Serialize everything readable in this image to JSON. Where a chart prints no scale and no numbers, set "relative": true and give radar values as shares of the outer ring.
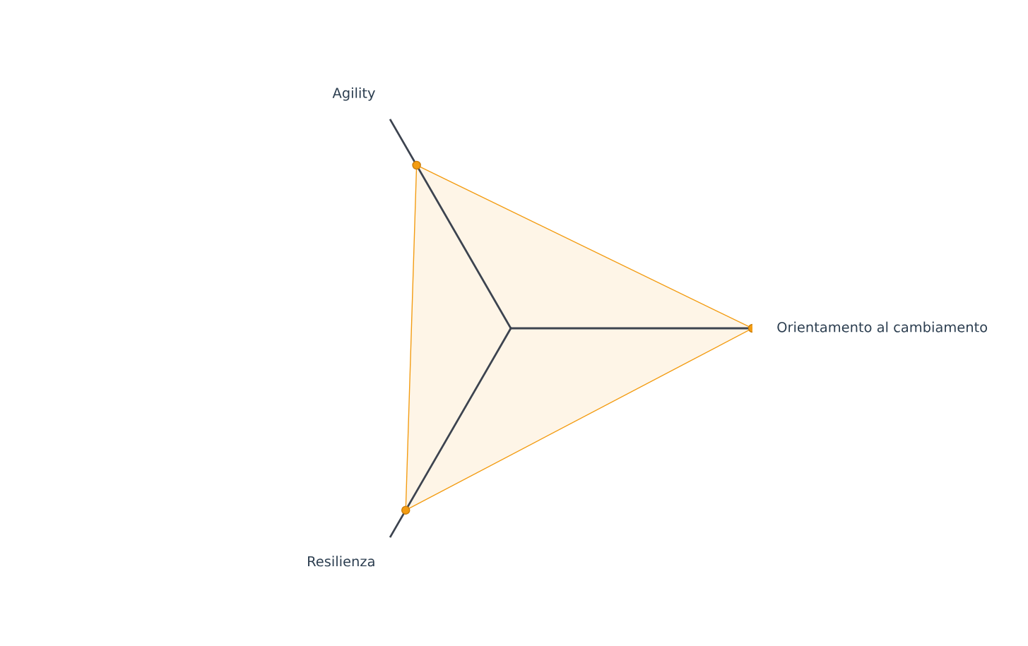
{
  "chart_data": {
    "type": "radar",
    "relative": true,
    "categories": [
      "Orientamento al cambiamento",
      "Resilienza",
      "Agility"
    ],
    "series": [
      {
        "color": "#f39c12",
        "values": [
          1.0,
          0.87,
          0.78
        ]
      }
    ],
    "marker": "circle",
    "legend": false
  }
}
